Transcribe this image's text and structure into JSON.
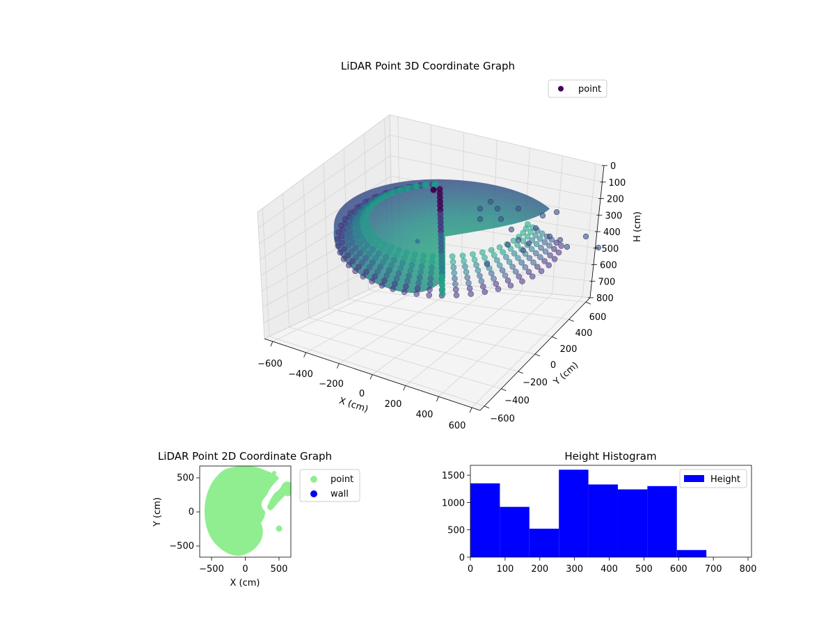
{
  "chart_data": [
    {
      "type": "scatter",
      "title": "LiDAR Point 3D Coordinate Graph",
      "xlabel": "X (cm)",
      "ylabel": "Y (cm)",
      "zlabel": "H (cm)",
      "xticks": [
        "−600",
        "−400",
        "−200",
        "0",
        "200",
        "400",
        "600"
      ],
      "yticks": [
        "−600",
        "−400",
        "−200",
        "0",
        "200",
        "400",
        "600"
      ],
      "zticks": [
        "0",
        "100",
        "200",
        "300",
        "400",
        "500",
        "600",
        "700",
        "800"
      ],
      "xlim": [
        -650,
        650
      ],
      "ylim": [
        -650,
        650
      ],
      "zlim": [
        800,
        0
      ],
      "z_inverted": true,
      "grid": true,
      "colormap": "viridis (colored by height)",
      "legend": {
        "position": "top-right",
        "entries": [
          "point"
        ]
      },
      "series": [
        {
          "name": "point",
          "color": "#440154",
          "description": "dome-shaped cloud of points (radius about 600 cm) with a vertical wall segment near x=0..200 and scattered points toward +x",
          "sample_points": [
            {
              "x": -600,
              "y": 0,
              "h": 500
            },
            {
              "x": -400,
              "y": -400,
              "h": 600
            },
            {
              "x": 0,
              "y": -600,
              "h": 700
            },
            {
              "x": 100,
              "y": -550,
              "h": 800
            },
            {
              "x": 150,
              "y": 100,
              "h": 100
            },
            {
              "x": 150,
              "y": 100,
              "h": 800
            },
            {
              "x": 500,
              "y": 400,
              "h": 300
            },
            {
              "x": 600,
              "y": 350,
              "h": 400
            }
          ]
        }
      ]
    },
    {
      "type": "scatter",
      "title": "LiDAR Point 2D Coordinate Graph",
      "xlabel": "X (cm)",
      "ylabel": "Y (cm)",
      "xticks": [
        "−500",
        "0",
        "500"
      ],
      "yticks": [
        "−500",
        "0",
        "500"
      ],
      "xlim": [
        -680,
        680
      ],
      "ylim": [
        -680,
        680
      ],
      "grid": false,
      "legend": {
        "position": "outside-right",
        "entries": [
          "point",
          "wall"
        ]
      },
      "series": [
        {
          "name": "point",
          "color": "#90ee90",
          "description": "filled half-disk of points, radius about 600 cm, centered at origin, bulging to negative x",
          "sample_points": [
            {
              "x": -600,
              "y": 0
            },
            {
              "x": -400,
              "y": 450
            },
            {
              "x": -400,
              "y": -450
            },
            {
              "x": 100,
              "y": 650
            },
            {
              "x": 200,
              "y": -600
            },
            {
              "x": 480,
              "y": -260
            },
            {
              "x": 550,
              "y": 350
            }
          ]
        },
        {
          "name": "wall",
          "color": "#0000ff",
          "sample_points": []
        }
      ]
    },
    {
      "type": "bar",
      "title": "Height Histogram",
      "xlabel": "",
      "ylabel": "",
      "bin_edges": [
        0,
        85,
        170,
        255,
        340,
        425,
        510,
        595,
        680,
        765
      ],
      "values": [
        1350,
        920,
        520,
        1600,
        1330,
        1240,
        1300,
        130,
        0
      ],
      "xticks": [
        "0",
        "100",
        "200",
        "300",
        "400",
        "500",
        "600",
        "700",
        "800"
      ],
      "yticks": [
        "0",
        "500",
        "1000",
        "1500"
      ],
      "xlim": [
        0,
        810
      ],
      "ylim": [
        0,
        1680
      ],
      "grid": false,
      "color": "#0000ff",
      "legend": {
        "position": "top-right",
        "entries": [
          "Height"
        ]
      },
      "series": [
        {
          "name": "Height",
          "color": "#0000ff"
        }
      ]
    }
  ]
}
